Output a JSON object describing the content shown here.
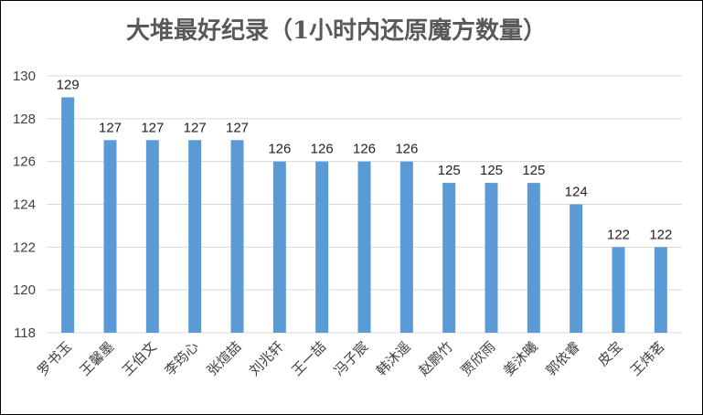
{
  "chart_data": {
    "type": "bar",
    "title": "大堆最好纪录（1小时内还原魔方数量）",
    "categories": [
      "罗书玉",
      "王馨墨",
      "王伯文",
      "李筠心",
      "张煊喆",
      "刘兆轩",
      "王一喆",
      "冯子宸",
      "韩沐遥",
      "赵鹏竹",
      "贾欣雨",
      "姜沐曦",
      "郭依睿",
      "皮宝",
      "王炜茗"
    ],
    "values": [
      129,
      127,
      127,
      127,
      127,
      126,
      126,
      126,
      126,
      125,
      125,
      125,
      124,
      122,
      122
    ],
    "yticks": [
      118,
      120,
      122,
      124,
      126,
      128,
      130
    ],
    "ylim": [
      118,
      130
    ],
    "grid": true,
    "legend": "none",
    "bar_color": "#5b9bd5"
  }
}
